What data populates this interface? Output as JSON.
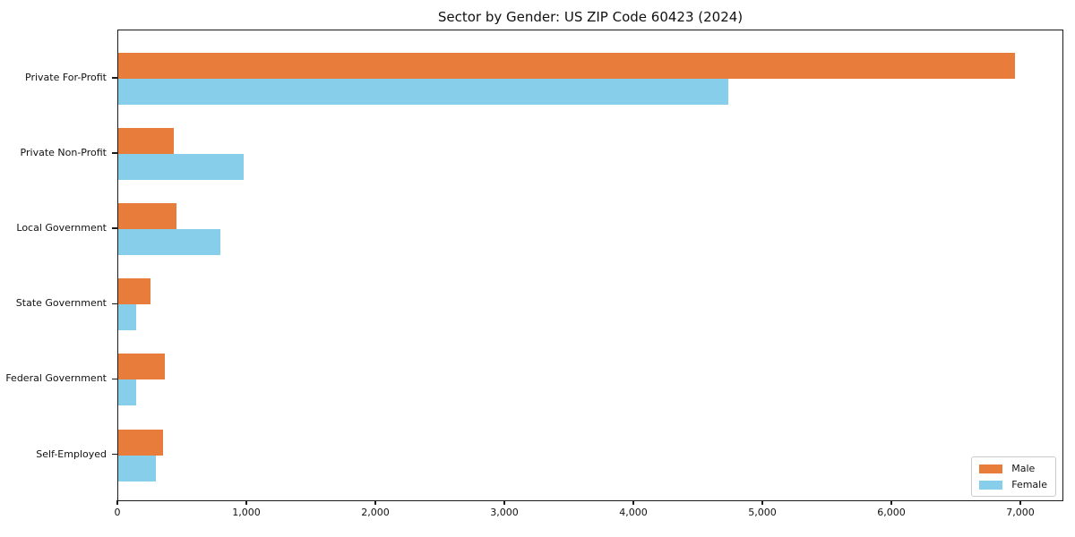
{
  "chart_data": {
    "type": "bar",
    "orientation": "horizontal",
    "title": "Sector by Gender: US ZIP Code 60423 (2024)",
    "categories": [
      "Private For-Profit",
      "Private Non-Profit",
      "Local Government",
      "State Government",
      "Federal Government",
      "Self-Employed"
    ],
    "series": [
      {
        "name": "Male",
        "color": "#E87D3B",
        "values": [
          6950,
          430,
          450,
          250,
          360,
          350
        ]
      },
      {
        "name": "Female",
        "color": "#87CEEB",
        "values": [
          4730,
          970,
          790,
          140,
          140,
          290
        ]
      }
    ],
    "xlabel": "",
    "ylabel": "",
    "xlim": [
      0,
      7333
    ],
    "x_ticks": [
      0,
      1000,
      2000,
      3000,
      4000,
      5000,
      6000,
      7000
    ],
    "x_tick_labels": [
      "0",
      "1,000",
      "2,000",
      "3,000",
      "4,000",
      "5,000",
      "6,000",
      "7,000"
    ],
    "grid": false,
    "legend_position": "lower right",
    "background_color": "#ffffff",
    "axis_color": "#1a1a1a"
  }
}
